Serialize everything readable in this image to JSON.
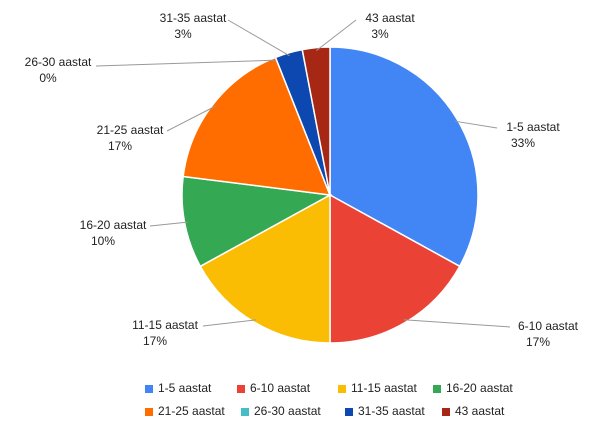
{
  "chart_data": {
    "type": "pie",
    "categories": [
      "1-5 aastat",
      "6-10 aastat",
      "11-15 aastat",
      "16-20 aastat",
      "21-25 aastat",
      "26-30 aastat",
      "31-35 aastat",
      "43 aastat"
    ],
    "values": [
      33,
      17,
      17,
      10,
      17,
      0,
      3,
      3
    ],
    "value_labels": [
      "33%",
      "17%",
      "17%",
      "10%",
      "17%",
      "0%",
      "3%",
      "3%"
    ],
    "colors": [
      "#4285f4",
      "#ea4335",
      "#fbbc04",
      "#34a853",
      "#ff6d01",
      "#46bdc6",
      "#0d47b0",
      "#a52714"
    ],
    "legend": "bottom"
  }
}
